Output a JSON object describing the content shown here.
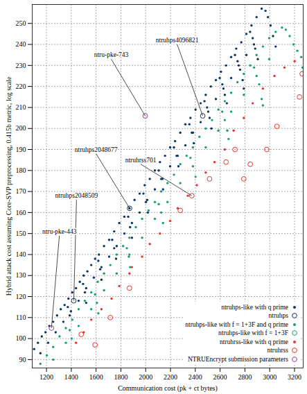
{
  "chart_data": {
    "type": "scatter",
    "x_label": "Communication cost (pk + ct bytes)",
    "y_label": "Hybrid attack cost assuming Core-SVP preprocessing, 0.415b metric, log scale",
    "xlim": [
      1085,
      3270
    ],
    "ylim": [
      86,
      259
    ],
    "xticks": [
      1200,
      1400,
      1600,
      1800,
      2000,
      2200,
      2400,
      2600,
      2800,
      3000,
      3200
    ],
    "yticks": [
      90,
      100,
      110,
      120,
      130,
      140,
      150,
      160,
      170,
      180,
      190,
      200,
      210,
      220,
      230,
      240,
      250
    ],
    "grid": true,
    "legend": "bottom-right",
    "series": [
      {
        "name": "ntruhps-like with q prime",
        "color": "#0b3565",
        "marker": "dot",
        "x": [
          1100,
          1131,
          1162,
          1192,
          1223,
          1254,
          1285,
          1315,
          1346,
          1377,
          1408,
          1438,
          1469,
          1500,
          1530,
          1561,
          1592,
          1623,
          1664,
          1705,
          1746,
          1787,
          1828,
          1869,
          1910,
          1951,
          1992,
          2033,
          2074,
          2115,
          2156,
          2197,
          2237,
          2279,
          2320,
          2361,
          2402,
          2443,
          2484,
          2525,
          2566,
          2607,
          2648,
          2689,
          2730,
          2771,
          2812,
          2853,
          2894,
          2935,
          1151,
          1213,
          1274,
          1336,
          1397,
          1459,
          1520,
          1582,
          1643,
          1705,
          1766,
          1828,
          1889,
          1951,
          2012,
          2074,
          2135,
          2197,
          2258,
          2320,
          2381,
          2443,
          2504,
          2566,
          2627,
          2689,
          2750,
          2812,
          2873,
          2966,
          2986,
          3007,
          3027,
          3048,
          2842,
          2863,
          2883,
          2904,
          2720,
          2741,
          2761,
          2782,
          2791,
          2597,
          2618,
          2638,
          2654,
          2474,
          2495,
          2515,
          2530,
          2352,
          2372,
          2388,
          2228,
          2249,
          2264,
          2105,
          2125,
          2140,
          1982,
          2002,
          2017,
          1859,
          1874,
          1889,
          1730,
          1746,
          1761,
          1618,
          1633,
          1643,
          1495,
          1510,
          1520,
          1372,
          1387
        ],
        "values": [
          95,
          98,
          101,
          103,
          106,
          108,
          111,
          114,
          116,
          119,
          122,
          124,
          127,
          130,
          132,
          135,
          138,
          140,
          144,
          147,
          151,
          155,
          158,
          162,
          166,
          169,
          173,
          176,
          180,
          184,
          187,
          191,
          194,
          198,
          202,
          205,
          209,
          212,
          216,
          220,
          223,
          227,
          230,
          234,
          238,
          241,
          245,
          249,
          253,
          257,
          93,
          98,
          103,
          108,
          113,
          118,
          124,
          129,
          134,
          139,
          144,
          150,
          155,
          160,
          166,
          171,
          176,
          182,
          187,
          192,
          198,
          203,
          208,
          214,
          219,
          224,
          230,
          235,
          240,
          256,
          253,
          249,
          244,
          239,
          246,
          243,
          238,
          233,
          235,
          232,
          228,
          223,
          219,
          224,
          221,
          216,
          212,
          213,
          210,
          205,
          200,
          202,
          198,
          193,
          191,
          187,
          182,
          180,
          176,
          171,
          169,
          165,
          160,
          158,
          153,
          148,
          147,
          143,
          138,
          137,
          133,
          128,
          126,
          122,
          117,
          115,
          111
        ]
      },
      {
        "name": "ntruhps",
        "color": "#0b3565",
        "marker": "circle",
        "x": [
          1420,
          1870,
          2460
        ],
        "values": [
          118,
          162,
          206
        ]
      },
      {
        "name": "ntruhps-like with f = 1+3F and q prime",
        "color": "#1a9e77",
        "marker": "dot",
        "x": [
          1151,
          1203,
          1254,
          1305,
          1356,
          1408,
          1459,
          1510,
          1561,
          1613,
          1664,
          1715,
          1766,
          1818,
          1869,
          1920,
          1971,
          2023,
          2074,
          2125,
          2176,
          2228,
          2279,
          2330,
          2381,
          2433,
          2484,
          2535,
          2586,
          2638,
          2689,
          2740,
          2791,
          2843,
          2894,
          2945,
          2996,
          3048,
          3099,
          1254,
          1356,
          1459,
          1561,
          1664,
          1766,
          1869,
          1971,
          2074,
          2176,
          2279,
          2381,
          2484,
          2586,
          2689,
          2791,
          2894,
          2996,
          3130,
          3161,
          3192,
          3223,
          3254,
          3265,
          2874,
          2915,
          2935,
          2945,
          2617,
          2638,
          2658,
          2668,
          2361,
          2402,
          2105,
          2125,
          2140,
          1848,
          1864,
          1874,
          1592,
          1607,
          1618,
          1387,
          1403
        ],
        "values": [
          88,
          92,
          96,
          101,
          105,
          109,
          114,
          118,
          122,
          127,
          131,
          135,
          140,
          144,
          148,
          153,
          157,
          161,
          165,
          170,
          174,
          178,
          183,
          187,
          191,
          196,
          200,
          204,
          209,
          213,
          217,
          222,
          226,
          230,
          235,
          239,
          243,
          246,
          248,
          90,
          98,
          106,
          114,
          123,
          131,
          140,
          148,
          157,
          165,
          174,
          182,
          191,
          199,
          208,
          216,
          225,
          233,
          247,
          244,
          240,
          237,
          234,
          229,
          229,
          221,
          214,
          211,
          208,
          204,
          199,
          195,
          186,
          177,
          164,
          160,
          155,
          143,
          139,
          134,
          121,
          117,
          112,
          104,
          100
        ]
      },
      {
        "name": "ntruhps-like with f = 1+3F",
        "color": "#1a9e77",
        "marker": "circle",
        "x": [],
        "values": []
      },
      {
        "name": "ntruhrss-like with q prime",
        "color": "#e8332a",
        "marker": "dot",
        "x": [
          1438,
          1500,
          1561,
          1643,
          1725,
          1787,
          1869,
          1889,
          1971,
          2033,
          2115,
          2197,
          2258,
          2340,
          2412,
          2484,
          2555,
          2638,
          2709,
          2791,
          2863,
          2945,
          3038,
          3119,
          3201
        ],
        "values": [
          98,
          103,
          109,
          114,
          119,
          125,
          131,
          134,
          139,
          145,
          150,
          156,
          162,
          168,
          173,
          179,
          184,
          190,
          199,
          205,
          212,
          219,
          225,
          229,
          232
        ]
      },
      {
        "name": "ntruhrss",
        "color": "#e8332a",
        "marker": "circle",
        "x": [
          1480,
          1592,
          1715,
          1869,
          2279,
          2372,
          2515,
          2648,
          2720,
          2791,
          2843,
          2976,
          3058,
          3240,
          3262
        ],
        "values": [
          102,
          97,
          110,
          124,
          161,
          168,
          176,
          184,
          190,
          176,
          183,
          190,
          201,
          215,
          226
        ]
      },
      {
        "name": "NTRUEncrypt submission parameters",
        "color": "#8e3e98",
        "marker": "circle",
        "x": [
          1240,
          1996
        ],
        "values": [
          105,
          206
        ]
      }
    ],
    "annotations": [
      {
        "text": "ntru-pke-743",
        "x": 1722,
        "y": 233,
        "target_x": 1996,
        "target_y": 206
      },
      {
        "text": "ntruhps4096821",
        "x": 2254,
        "y": 240,
        "target_x": 2460,
        "target_y": 206
      },
      {
        "text": "ntruhps2048677",
        "x": 1600,
        "y": 188,
        "target_x": 1870,
        "target_y": 162
      },
      {
        "text": "ntruhrss701",
        "x": 1960,
        "y": 183,
        "target_x": 2372,
        "target_y": 168
      },
      {
        "text": "ntruhps2048509",
        "x": 1442,
        "y": 166,
        "target_x": 1420,
        "target_y": 118
      },
      {
        "text": "ntru-pke-443",
        "x": 1304,
        "y": 149,
        "target_x": 1240,
        "target_y": 105
      }
    ]
  }
}
